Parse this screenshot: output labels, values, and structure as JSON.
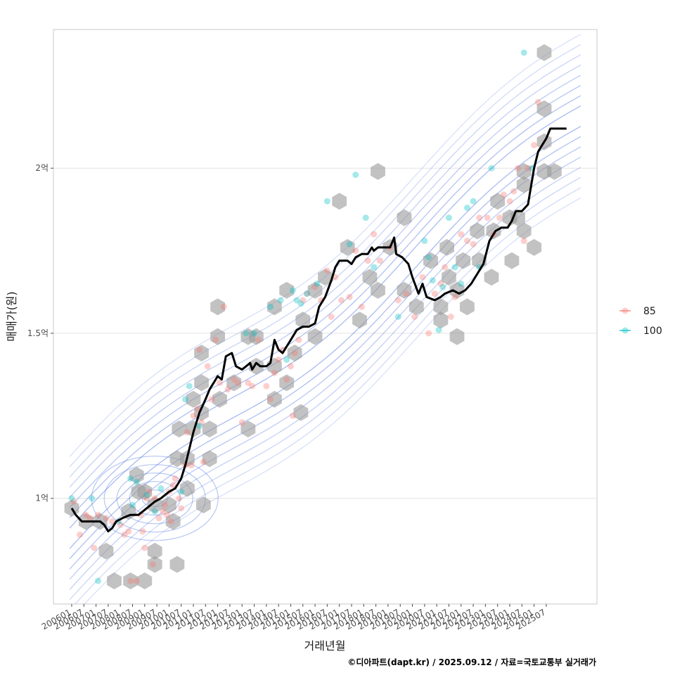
{
  "chart_data": {
    "type": "scatter",
    "xlabel": "거래년월",
    "ylabel": "매매가(원)",
    "caption": "©디아파트(dapt.kr) / 2025.09.12 / 자료=국토교통부 실거래가",
    "y_unit": "억 원",
    "ylim": [
      0.68,
      2.42
    ],
    "yticks": [
      {
        "value": 1.0,
        "label": "1억"
      },
      {
        "value": 1.5,
        "label": "1.5억"
      },
      {
        "value": 2.0,
        "label": "2억"
      }
    ],
    "xlim": [
      "2005-04",
      "2027-08"
    ],
    "xticks": [
      "200601",
      "200607",
      "200701",
      "200707",
      "200801",
      "200807",
      "200901",
      "200907",
      "201001",
      "201007",
      "201101",
      "201107",
      "201201",
      "201207",
      "201301",
      "201307",
      "201401",
      "201407",
      "201501",
      "201507",
      "201601",
      "201607",
      "201701",
      "201707",
      "201801",
      "201807",
      "201901",
      "201907",
      "202001",
      "202007",
      "202101",
      "202107",
      "202201",
      "202207",
      "202301",
      "202307",
      "202401",
      "202407",
      "202501",
      "202507"
    ],
    "grid": "horizontal-major",
    "legend": {
      "position": "right",
      "entries": [
        {
          "label": "85",
          "color": "#F8766D"
        },
        {
          "label": "100",
          "color": "#00BFC4"
        }
      ]
    },
    "colors": {
      "hex": "#999999",
      "density_contour": "#4169E1",
      "moving_average": "#000000"
    },
    "series": [
      {
        "name": "85",
        "points": [
          [
            "2006-02",
            0.99
          ],
          [
            "2006-05",
            0.89
          ],
          [
            "2006-08",
            0.95
          ],
          [
            "2006-10",
            0.94
          ],
          [
            "2006-12",
            0.85
          ],
          [
            "2007-02",
            0.95
          ],
          [
            "2007-06",
            0.94
          ],
          [
            "2007-09",
            0.93
          ],
          [
            "2008-01",
            0.92
          ],
          [
            "2008-03",
            0.89
          ],
          [
            "2008-05",
            0.9
          ],
          [
            "2008-06",
            0.75
          ],
          [
            "2008-09",
            0.75
          ],
          [
            "2008-11",
            0.95
          ],
          [
            "2008-12",
            0.9
          ],
          [
            "2009-01",
            0.85
          ],
          [
            "2009-02",
            1.0
          ],
          [
            "2009-03",
            1.02
          ],
          [
            "2009-05",
            0.8
          ],
          [
            "2009-06",
            1.0
          ],
          [
            "2009-08",
            0.94
          ],
          [
            "2009-10",
            0.96
          ],
          [
            "2009-11",
            0.98
          ],
          [
            "2009-12",
            0.95
          ],
          [
            "2010-01",
            1.02
          ],
          [
            "2010-02",
            0.93
          ],
          [
            "2010-03",
            1.04
          ],
          [
            "2010-04",
            1.06
          ],
          [
            "2010-06",
            1.0
          ],
          [
            "2010-07",
            0.97
          ],
          [
            "2010-09",
            1.1
          ],
          [
            "2010-10",
            1.2
          ],
          [
            "2010-12",
            1.1
          ],
          [
            "2011-01",
            1.25
          ],
          [
            "2011-03",
            1.27
          ],
          [
            "2011-04",
            1.45
          ],
          [
            "2011-05",
            1.23
          ],
          [
            "2011-06",
            1.11
          ],
          [
            "2011-08",
            1.4
          ],
          [
            "2011-10",
            1.3
          ],
          [
            "2011-12",
            1.48
          ],
          [
            "2012-02",
            1.35
          ],
          [
            "2012-04",
            1.58
          ],
          [
            "2012-06",
            1.33
          ],
          [
            "2012-09",
            1.36
          ],
          [
            "2012-11",
            1.35
          ],
          [
            "2013-01",
            1.23
          ],
          [
            "2013-04",
            1.35
          ],
          [
            "2013-06",
            1.34
          ],
          [
            "2013-09",
            1.48
          ],
          [
            "2014-01",
            1.34
          ],
          [
            "2014-03",
            1.3
          ],
          [
            "2014-05",
            1.38
          ],
          [
            "2014-07",
            1.42
          ],
          [
            "2014-09",
            1.45
          ],
          [
            "2014-11",
            1.36
          ],
          [
            "2015-01",
            1.4
          ],
          [
            "2015-02",
            1.25
          ],
          [
            "2015-03",
            1.44
          ],
          [
            "2015-05",
            1.48
          ],
          [
            "2015-07",
            1.6
          ],
          [
            "2015-09",
            1.62
          ],
          [
            "2016-01",
            1.64
          ],
          [
            "2016-04",
            1.6
          ],
          [
            "2016-07",
            1.69
          ],
          [
            "2016-09",
            1.55
          ],
          [
            "2016-11",
            1.67
          ],
          [
            "2017-02",
            1.6
          ],
          [
            "2017-06",
            1.61
          ],
          [
            "2017-09",
            1.75
          ],
          [
            "2017-12",
            1.58
          ],
          [
            "2018-03",
            1.72
          ],
          [
            "2018-06",
            1.8
          ],
          [
            "2018-09",
            1.72
          ],
          [
            "2019-02",
            1.76
          ],
          [
            "2019-06",
            1.6
          ],
          [
            "2019-10",
            1.62
          ],
          [
            "2020-02",
            1.55
          ],
          [
            "2020-06",
            1.67
          ],
          [
            "2020-09",
            1.5
          ],
          [
            "2020-12",
            1.62
          ],
          [
            "2021-03",
            1.65
          ],
          [
            "2021-05",
            1.7
          ],
          [
            "2021-08",
            1.55
          ],
          [
            "2021-10",
            1.61
          ],
          [
            "2022-01",
            1.8
          ],
          [
            "2022-04",
            1.78
          ],
          [
            "2022-07",
            1.77
          ],
          [
            "2022-10",
            1.85
          ],
          [
            "2023-02",
            1.85
          ],
          [
            "2023-05",
            1.8
          ],
          [
            "2023-08",
            1.85
          ],
          [
            "2023-10",
            1.92
          ],
          [
            "2024-01",
            1.9
          ],
          [
            "2024-03",
            1.93
          ],
          [
            "2024-05",
            2.0
          ],
          [
            "2024-08",
            1.78
          ],
          [
            "2024-10",
            2.0
          ],
          [
            "2025-01",
            2.07
          ],
          [
            "2025-03",
            2.2
          ]
        ]
      },
      {
        "name": "100",
        "points": [
          [
            "2006-01",
            1.0
          ],
          [
            "2006-11",
            1.0
          ],
          [
            "2007-02",
            0.75
          ],
          [
            "2007-12",
            0.93
          ],
          [
            "2008-06",
            1.06
          ],
          [
            "2008-07",
            0.98
          ],
          [
            "2008-09",
            1.05
          ],
          [
            "2009-02",
            1.01
          ],
          [
            "2009-06",
            0.96
          ],
          [
            "2009-09",
            1.03
          ],
          [
            "2010-07",
            1.02
          ],
          [
            "2010-09",
            1.3
          ],
          [
            "2010-11",
            1.34
          ],
          [
            "2011-04",
            1.22
          ],
          [
            "2013-03",
            1.5
          ],
          [
            "2013-07",
            1.5
          ],
          [
            "2014-03",
            1.58
          ],
          [
            "2014-08",
            1.6
          ],
          [
            "2014-11",
            1.42
          ],
          [
            "2015-02",
            1.63
          ],
          [
            "2015-04",
            1.6
          ],
          [
            "2015-06",
            1.59
          ],
          [
            "2015-09",
            1.62
          ],
          [
            "2016-02",
            1.65
          ],
          [
            "2016-07",
            1.9
          ],
          [
            "2017-06",
            1.77
          ],
          [
            "2017-09",
            1.98
          ],
          [
            "2018-02",
            1.85
          ],
          [
            "2018-06",
            1.7
          ],
          [
            "2019-06",
            1.55
          ],
          [
            "2020-07",
            1.78
          ],
          [
            "2020-09",
            1.73
          ],
          [
            "2020-11",
            1.66
          ],
          [
            "2021-02",
            1.51
          ],
          [
            "2021-04",
            1.64
          ],
          [
            "2021-07",
            1.85
          ],
          [
            "2021-10",
            1.7
          ],
          [
            "2022-01",
            1.65
          ],
          [
            "2022-04",
            1.88
          ],
          [
            "2022-07",
            1.9
          ],
          [
            "2022-10",
            1.7
          ],
          [
            "2023-04",
            2.0
          ],
          [
            "2024-08",
            2.35
          ],
          [
            "2024-12",
            2.0
          ]
        ]
      }
    ],
    "moving_average": [
      [
        "2006-01",
        0.97
      ],
      [
        "2006-03",
        0.95
      ],
      [
        "2006-06",
        0.93
      ],
      [
        "2006-12",
        0.93
      ],
      [
        "2007-03",
        0.93
      ],
      [
        "2007-05",
        0.92
      ],
      [
        "2007-07",
        0.9
      ],
      [
        "2007-09",
        0.91
      ],
      [
        "2007-11",
        0.93
      ],
      [
        "2008-02",
        0.94
      ],
      [
        "2008-06",
        0.95
      ],
      [
        "2008-10",
        0.95
      ],
      [
        "2009-02",
        0.97
      ],
      [
        "2009-06",
        0.99
      ],
      [
        "2009-09",
        1.0
      ],
      [
        "2010-01",
        1.02
      ],
      [
        "2010-04",
        1.03
      ],
      [
        "2010-07",
        1.06
      ],
      [
        "2010-09",
        1.1
      ],
      [
        "2010-11",
        1.15
      ],
      [
        "2011-01",
        1.2
      ],
      [
        "2011-04",
        1.26
      ],
      [
        "2011-07",
        1.3
      ],
      [
        "2011-09",
        1.33
      ],
      [
        "2011-11",
        1.35
      ],
      [
        "2012-01",
        1.37
      ],
      [
        "2012-03",
        1.36
      ],
      [
        "2012-05",
        1.43
      ],
      [
        "2012-08",
        1.44
      ],
      [
        "2012-10",
        1.4
      ],
      [
        "2013-01",
        1.39
      ],
      [
        "2013-03",
        1.4
      ],
      [
        "2013-05",
        1.41
      ],
      [
        "2013-06",
        1.39
      ],
      [
        "2013-08",
        1.41
      ],
      [
        "2013-10",
        1.4
      ],
      [
        "2014-01",
        1.4
      ],
      [
        "2014-03",
        1.41
      ],
      [
        "2014-05",
        1.48
      ],
      [
        "2014-07",
        1.45
      ],
      [
        "2014-09",
        1.44
      ],
      [
        "2014-11",
        1.46
      ],
      [
        "2015-01",
        1.48
      ],
      [
        "2015-04",
        1.51
      ],
      [
        "2015-07",
        1.52
      ],
      [
        "2015-10",
        1.52
      ],
      [
        "2016-01",
        1.53
      ],
      [
        "2016-03",
        1.58
      ],
      [
        "2016-06",
        1.61
      ],
      [
        "2016-09",
        1.66
      ],
      [
        "2016-11",
        1.7
      ],
      [
        "2017-01",
        1.72
      ],
      [
        "2017-05",
        1.72
      ],
      [
        "2017-07",
        1.71
      ],
      [
        "2017-09",
        1.73
      ],
      [
        "2017-12",
        1.74
      ],
      [
        "2018-03",
        1.74
      ],
      [
        "2018-05",
        1.76
      ],
      [
        "2018-06",
        1.75
      ],
      [
        "2018-08",
        1.76
      ],
      [
        "2019-02",
        1.76
      ],
      [
        "2019-04",
        1.79
      ],
      [
        "2019-05",
        1.74
      ],
      [
        "2019-08",
        1.73
      ],
      [
        "2019-11",
        1.71
      ],
      [
        "2020-01",
        1.67
      ],
      [
        "2020-04",
        1.62
      ],
      [
        "2020-06",
        1.65
      ],
      [
        "2020-08",
        1.61
      ],
      [
        "2020-12",
        1.6
      ],
      [
        "2021-03",
        1.61
      ],
      [
        "2021-05",
        1.62
      ],
      [
        "2021-09",
        1.63
      ],
      [
        "2021-12",
        1.62
      ],
      [
        "2022-03",
        1.63
      ],
      [
        "2022-06",
        1.65
      ],
      [
        "2022-09",
        1.68
      ],
      [
        "2022-12",
        1.71
      ],
      [
        "2023-03",
        1.78
      ],
      [
        "2023-06",
        1.81
      ],
      [
        "2023-09",
        1.82
      ],
      [
        "2023-12",
        1.82
      ],
      [
        "2024-02",
        1.84
      ],
      [
        "2024-04",
        1.87
      ],
      [
        "2024-07",
        1.87
      ],
      [
        "2024-10",
        1.89
      ],
      [
        "2025-01",
        2.0
      ],
      [
        "2025-03",
        2.05
      ],
      [
        "2025-05",
        2.07
      ],
      [
        "2025-07",
        2.09
      ],
      [
        "2025-09",
        2.12
      ],
      [
        "2026-05",
        2.12
      ]
    ],
    "hexbins": [
      [
        "2006-01",
        0.97
      ],
      [
        "2006-08",
        0.93
      ],
      [
        "2007-03",
        0.93
      ],
      [
        "2007-06",
        0.84
      ],
      [
        "2007-10",
        0.75
      ],
      [
        "2008-05",
        0.96
      ],
      [
        "2008-06",
        0.75
      ],
      [
        "2008-09",
        1.07
      ],
      [
        "2008-10",
        1.02
      ],
      [
        "2009-01",
        1.02
      ],
      [
        "2009-01",
        0.75
      ],
      [
        "2009-06",
        0.8
      ],
      [
        "2009-06",
        0.84
      ],
      [
        "2009-06",
        0.98
      ],
      [
        "2010-01",
        0.98
      ],
      [
        "2010-03",
        0.93
      ],
      [
        "2010-05",
        1.12
      ],
      [
        "2010-05",
        0.8
      ],
      [
        "2010-06",
        1.21
      ],
      [
        "2010-10",
        1.12
      ],
      [
        "2010-10",
        1.03
      ],
      [
        "2011-01",
        1.21
      ],
      [
        "2011-01",
        1.3
      ],
      [
        "2011-05",
        1.26
      ],
      [
        "2011-05",
        1.35
      ],
      [
        "2011-05",
        1.44
      ],
      [
        "2011-06",
        0.98
      ],
      [
        "2011-09",
        1.21
      ],
      [
        "2011-09",
        1.12
      ],
      [
        "2012-01",
        1.58
      ],
      [
        "2012-01",
        1.49
      ],
      [
        "2012-02",
        1.3
      ],
      [
        "2012-09",
        1.35
      ],
      [
        "2013-04",
        1.49
      ],
      [
        "2013-04",
        1.21
      ],
      [
        "2013-08",
        1.4
      ],
      [
        "2013-08",
        1.49
      ],
      [
        "2014-05",
        1.3
      ],
      [
        "2014-05",
        1.4
      ],
      [
        "2014-05",
        1.58
      ],
      [
        "2014-11",
        1.63
      ],
      [
        "2014-11",
        1.35
      ],
      [
        "2015-03",
        1.44
      ],
      [
        "2015-06",
        1.26
      ],
      [
        "2015-07",
        1.54
      ],
      [
        "2016-01",
        1.49
      ],
      [
        "2016-01",
        1.63
      ],
      [
        "2016-06",
        1.67
      ],
      [
        "2017-01",
        1.9
      ],
      [
        "2017-05",
        1.76
      ],
      [
        "2017-11",
        1.54
      ],
      [
        "2018-04",
        1.67
      ],
      [
        "2018-08",
        1.99
      ],
      [
        "2018-08",
        1.63
      ],
      [
        "2019-02",
        1.76
      ],
      [
        "2019-09",
        1.63
      ],
      [
        "2019-09",
        1.85
      ],
      [
        "2020-03",
        1.58
      ],
      [
        "2020-10",
        1.72
      ],
      [
        "2021-03",
        1.58
      ],
      [
        "2021-03",
        1.54
      ],
      [
        "2021-06",
        1.76
      ],
      [
        "2021-07",
        1.67
      ],
      [
        "2021-11",
        1.49
      ],
      [
        "2021-11",
        1.63
      ],
      [
        "2022-02",
        1.72
      ],
      [
        "2022-04",
        1.58
      ],
      [
        "2022-09",
        1.81
      ],
      [
        "2022-10",
        1.72
      ],
      [
        "2023-04",
        1.67
      ],
      [
        "2023-05",
        1.81
      ],
      [
        "2023-07",
        1.9
      ],
      [
        "2024-01",
        1.85
      ],
      [
        "2024-02",
        1.72
      ],
      [
        "2024-05",
        1.85
      ],
      [
        "2024-08",
        1.95
      ],
      [
        "2024-08",
        1.99
      ],
      [
        "2024-08",
        1.81
      ],
      [
        "2025-01",
        1.76
      ],
      [
        "2025-06",
        2.35
      ],
      [
        "2025-06",
        2.18
      ],
      [
        "2025-06",
        2.08
      ],
      [
        "2025-06",
        1.99
      ],
      [
        "2025-11",
        1.99
      ]
    ]
  }
}
